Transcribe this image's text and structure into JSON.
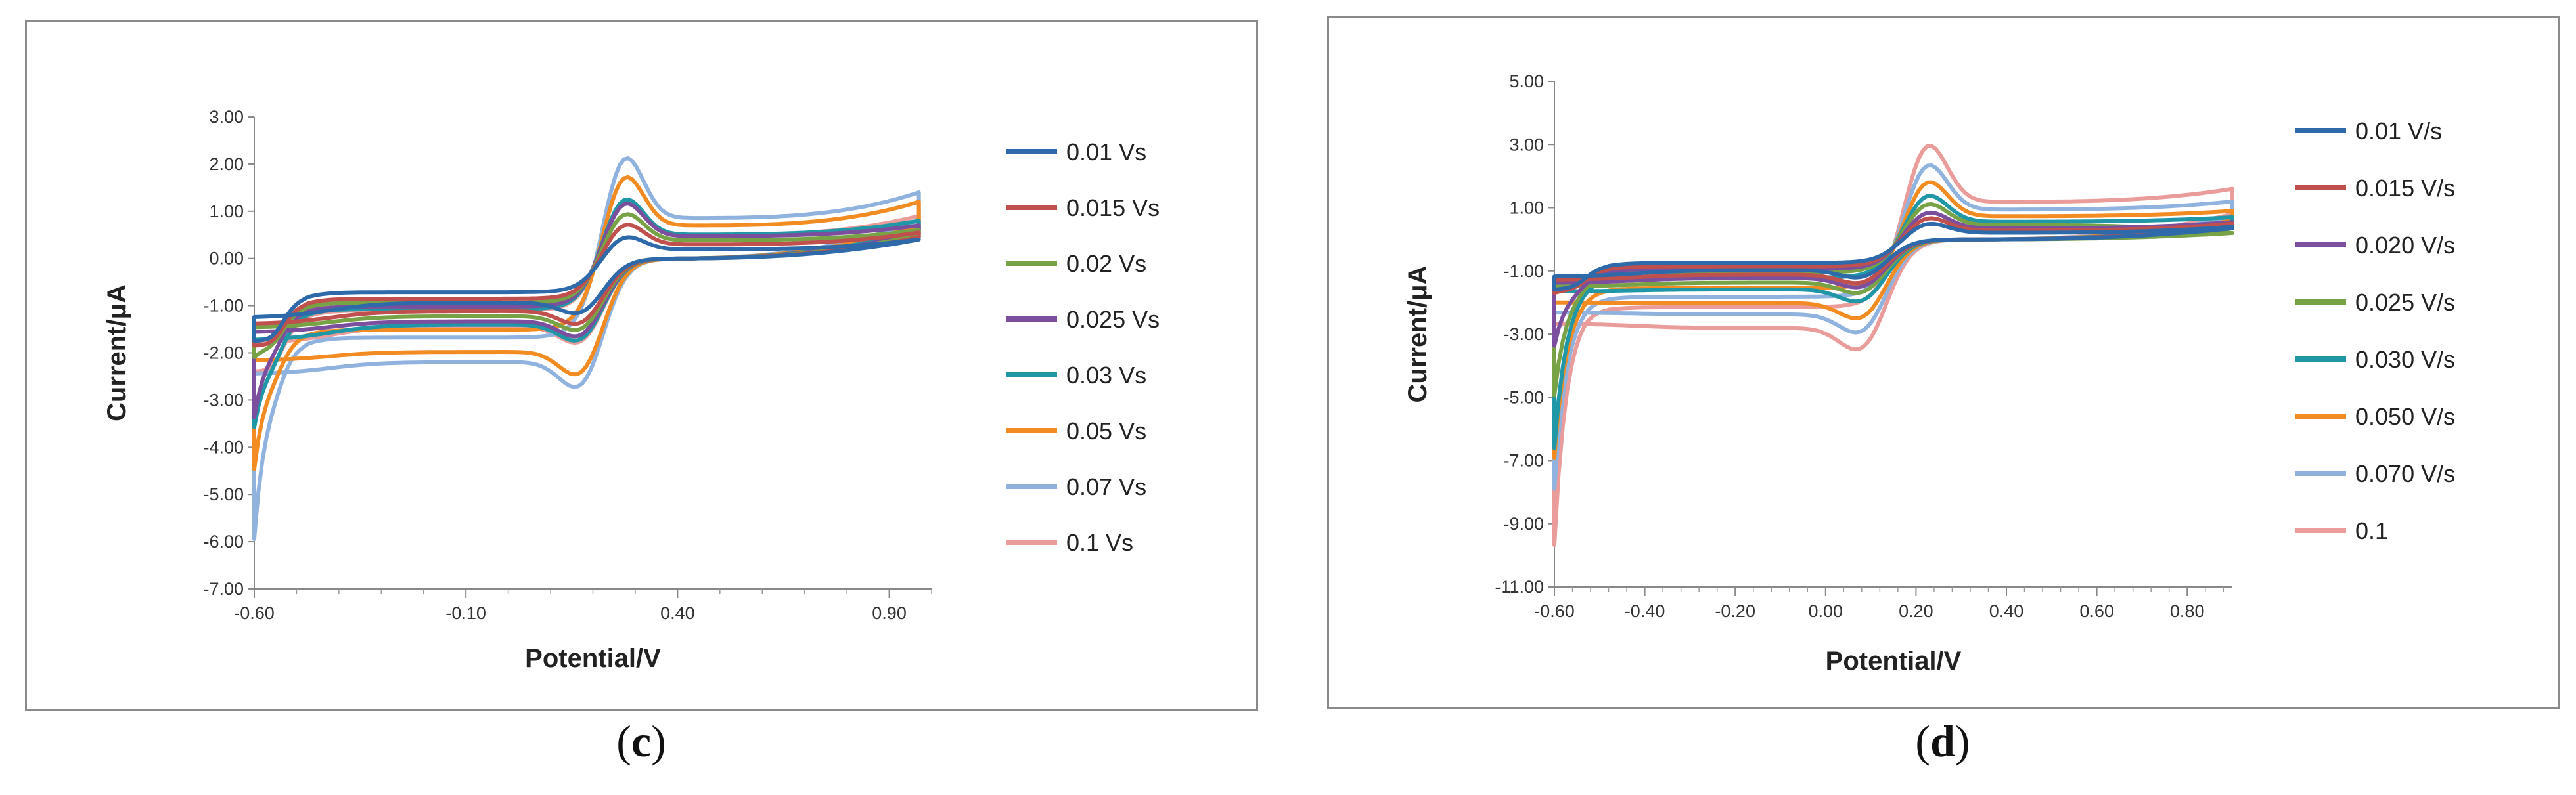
{
  "chart_data": [
    {
      "id": "c",
      "type": "line",
      "caption": "c",
      "xlabel": "Potential/V",
      "ylabel": "Current/μA",
      "xlim": [
        -0.6,
        1.0
      ],
      "ylim": [
        -7.0,
        3.0
      ],
      "x_ticks": [
        -0.6,
        -0.1,
        0.4,
        0.9
      ],
      "x_tick_labels": [
        "-0.60",
        "-0.10",
        "0.40",
        "0.90"
      ],
      "y_ticks": [
        3,
        2,
        1,
        0,
        -1,
        -2,
        -3,
        -4,
        -5,
        -6,
        -7
      ],
      "y_tick_labels": [
        "3.00",
        "2.00",
        "1.00",
        "0.00",
        "-1.00",
        "-2.00",
        "-3.00",
        "-4.00",
        "-5.00",
        "-6.00",
        "-7.00"
      ],
      "legend_position": "right",
      "shape": {
        "ep_anodic": 0.27,
        "ep_cathodic": 0.18,
        "x_start": -0.6,
        "x_end": 0.97,
        "bg_slope": 0.72
      },
      "series": [
        {
          "name": "0.01 Vs",
          "color": "#2e6aa9",
          "ipa": 0.55,
          "ipc": -1.3,
          "i_start": -1.75,
          "i_end": 0.4,
          "i_end_return": 0.4,
          "i_min": -1.75
        },
        {
          "name": "0.015 Vs",
          "color": "#c0504d",
          "ipa": 0.85,
          "ipc": -1.55,
          "i_start": -1.85,
          "i_end": 0.55,
          "i_end_return": 0.45,
          "i_min": -1.85
        },
        {
          "name": "0.02 Vs",
          "color": "#77a246",
          "ipa": 1.1,
          "ipc": -1.7,
          "i_start": -1.9,
          "i_end": 0.6,
          "i_end_return": 0.5,
          "i_min": -2.1
        },
        {
          "name": "0.025 Vs",
          "color": "#7b4f9d",
          "ipa": 1.35,
          "ipc": -1.85,
          "i_start": -2.0,
          "i_end": 0.7,
          "i_end_return": 0.55,
          "i_min": -3.4
        },
        {
          "name": "0.03 Vs",
          "color": "#1f97a6",
          "ipa": 1.45,
          "ipc": -1.95,
          "i_start": -2.3,
          "i_end": 0.8,
          "i_end_return": 0.6,
          "i_min": -3.6
        },
        {
          "name": "0.05 Vs",
          "color": "#f28b22",
          "ipa": 2.0,
          "ipc": -2.75,
          "i_start": -2.6,
          "i_end": 1.2,
          "i_end_return": 0.7,
          "i_min": -4.5
        },
        {
          "name": "0.07 Vs",
          "color": "#8fb2de",
          "ipa": 2.45,
          "ipc": -3.05,
          "i_start": -3.0,
          "i_end": 1.4,
          "i_end_return": 0.8,
          "i_min": -6.0
        },
        {
          "name": "0.1 Vs",
          "color": "#e99c9a",
          "ipa": 1.4,
          "ipc": -2.0,
          "i_start": -2.4,
          "i_end": 0.9,
          "i_end_return": 0.6,
          "i_min": -2.4
        }
      ]
    },
    {
      "id": "d",
      "type": "line",
      "caption": "d",
      "xlabel": "Potential/V",
      "ylabel": "Current/μA",
      "xlim": [
        -0.6,
        0.9
      ],
      "ylim": [
        -11.0,
        5.0
      ],
      "x_ticks": [
        -0.6,
        -0.4,
        -0.2,
        0.0,
        0.2,
        0.4,
        0.6,
        0.8
      ],
      "x_tick_labels": [
        "-0.60",
        "-0.40",
        "-0.20",
        "0.00",
        "0.20",
        "0.40",
        "0.60",
        "0.80"
      ],
      "y_ticks": [
        5,
        3,
        1,
        -1,
        -3,
        -5,
        -7,
        -9,
        -11
      ],
      "y_tick_labels": [
        "5.00",
        "3.00",
        "1.00",
        "-1.00",
        "-3.00",
        "-5.00",
        "-7.00",
        "-9.00",
        "-11.00"
      ],
      "legend_position": "right",
      "shape": {
        "ep_anodic": 0.22,
        "ep_cathodic": 0.09,
        "x_start": -0.6,
        "x_end": 0.9,
        "bg_slope": 0.8
      },
      "series": [
        {
          "name": "0.01 V/s",
          "color": "#2e6aa9",
          "ipa": 0.6,
          "ipc": -1.35,
          "i_start": -1.55,
          "i_end": 0.4,
          "i_end_return": 0.35,
          "i_min": -1.6
        },
        {
          "name": "0.015 V/s",
          "color": "#c0504d",
          "ipa": 0.8,
          "ipc": -1.55,
          "i_start": -1.6,
          "i_end": 0.5,
          "i_end_return": 0.4,
          "i_min": -1.7
        },
        {
          "name": "0.020 V/s",
          "color": "#7b4f9d",
          "ipa": 1.0,
          "ipc": -1.7,
          "i_start": -1.7,
          "i_end": 0.55,
          "i_end_return": 0.45,
          "i_min": -3.4
        },
        {
          "name": "0.025 V/s",
          "color": "#77a246",
          "ipa": 1.3,
          "ipc": -1.9,
          "i_start": -1.8,
          "i_end": 0.2,
          "i_end_return": 0.2,
          "i_min": -5.0
        },
        {
          "name": "0.030 V/s",
          "color": "#1f97a6",
          "ipa": 1.6,
          "ipc": -2.2,
          "i_start": -1.9,
          "i_end": 0.7,
          "i_end_return": 0.5,
          "i_min": -6.7
        },
        {
          "name": "0.050 V/s",
          "color": "#f28b22",
          "ipa": 2.1,
          "ipc": -2.8,
          "i_start": -2.2,
          "i_end": 0.9,
          "i_end_return": 0.6,
          "i_min": -7.0
        },
        {
          "name": "0.070 V/s",
          "color": "#8fb2de",
          "ipa": 2.7,
          "ipc": -3.3,
          "i_start": -2.5,
          "i_end": 1.2,
          "i_end_return": 0.7,
          "i_min": -8.0
        },
        {
          "name": "0.1",
          "color": "#e99c9a",
          "ipa": 3.4,
          "ipc": -3.9,
          "i_start": -2.8,
          "i_end": 1.6,
          "i_end_return": 0.8,
          "i_min": -9.8
        }
      ]
    }
  ]
}
